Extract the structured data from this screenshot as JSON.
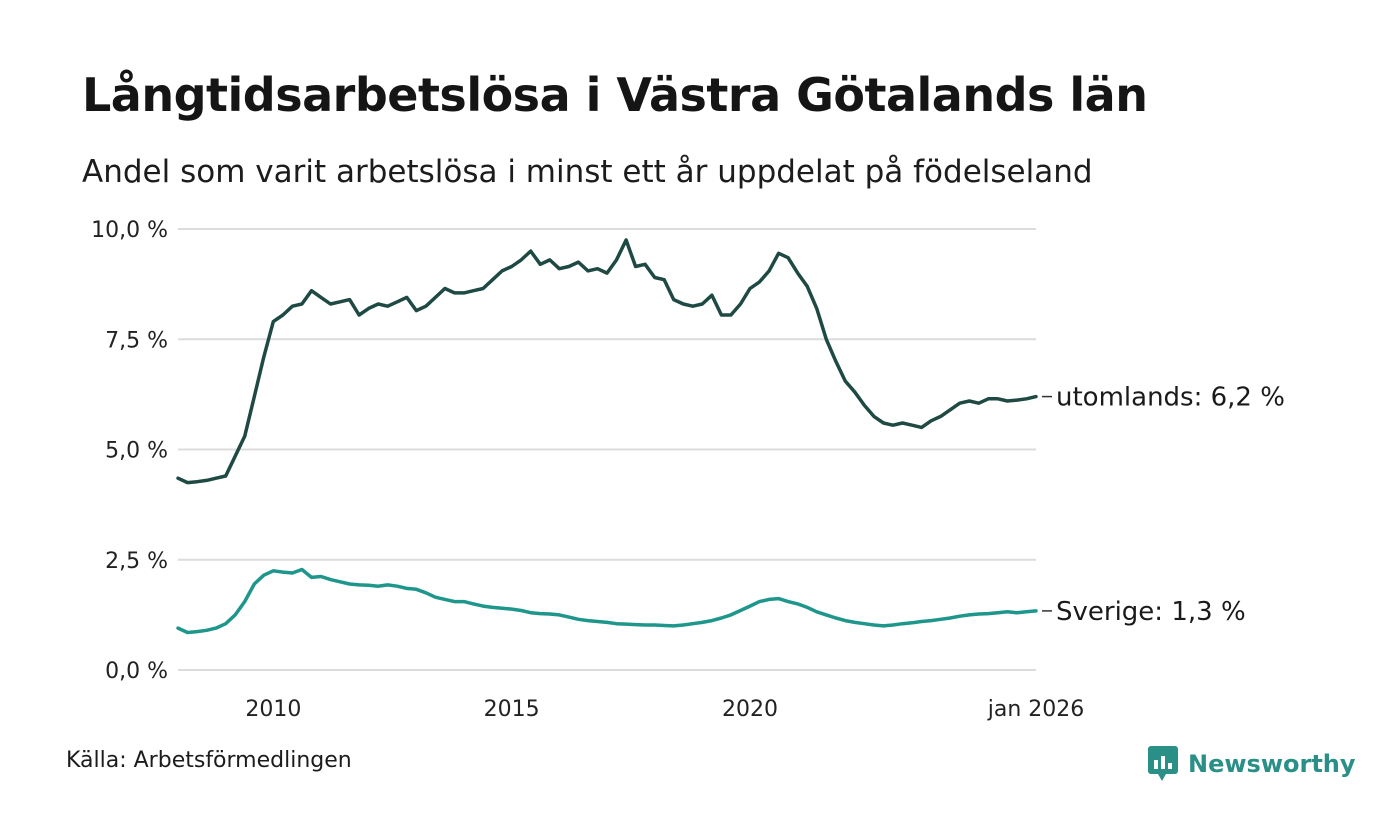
{
  "title": "Långtidsarbetslösa i Västra Götalands län",
  "subtitle": "Andel som varit arbetslösa i minst ett år uppdelat på födelseland",
  "source": "Källa: Arbetsförmedlingen",
  "brand": {
    "name": "Newsworthy",
    "icon": "newsworthy-logo-icon",
    "color": "#2a8f86"
  },
  "chart_data": {
    "type": "line",
    "title": "Långtidsarbetslösa i Västra Götalands län",
    "xlabel": "",
    "ylabel": "",
    "xlim": [
      2008.0,
      2026.0
    ],
    "ylim": [
      0,
      10
    ],
    "grid": true,
    "y_ticks": [
      0,
      2.5,
      5,
      7.5,
      10
    ],
    "y_tick_labels": [
      "0,0 %",
      "2,5 %",
      "5,0 %",
      "7,5 %",
      "10,0 %"
    ],
    "x_ticks": [
      2010,
      2015,
      2020,
      2026.0
    ],
    "x_tick_labels": [
      "2010",
      "2015",
      "2020",
      "jan 2026"
    ],
    "series": [
      {
        "name": "utomlands",
        "label": "utomlands: 6,2 %",
        "color": "#1f4a44",
        "x": [
          2008.0,
          2008.2,
          2008.4,
          2008.6,
          2008.8,
          2009.0,
          2009.2,
          2009.4,
          2009.6,
          2009.8,
          2010.0,
          2010.2,
          2010.4,
          2010.6,
          2010.8,
          2011.0,
          2011.2,
          2011.4,
          2011.6,
          2011.8,
          2012.0,
          2012.2,
          2012.4,
          2012.6,
          2012.8,
          2013.0,
          2013.2,
          2013.4,
          2013.6,
          2013.8,
          2014.0,
          2014.2,
          2014.4,
          2014.6,
          2014.8,
          2015.0,
          2015.2,
          2015.4,
          2015.6,
          2015.8,
          2016.0,
          2016.2,
          2016.4,
          2016.6,
          2016.8,
          2017.0,
          2017.2,
          2017.4,
          2017.6,
          2017.8,
          2018.0,
          2018.2,
          2018.4,
          2018.6,
          2018.8,
          2019.0,
          2019.2,
          2019.4,
          2019.6,
          2019.8,
          2020.0,
          2020.2,
          2020.4,
          2020.6,
          2020.8,
          2021.0,
          2021.2,
          2021.4,
          2021.6,
          2021.8,
          2022.0,
          2022.2,
          2022.4,
          2022.6,
          2022.8,
          2023.0,
          2023.2,
          2023.4,
          2023.6,
          2023.8,
          2024.0,
          2024.2,
          2024.4,
          2024.6,
          2024.8,
          2025.0,
          2025.2,
          2025.4,
          2025.6,
          2025.8,
          2026.0
        ],
        "values": [
          4.35,
          4.25,
          4.27,
          4.3,
          4.35,
          4.4,
          4.85,
          5.3,
          6.2,
          7.1,
          7.9,
          8.05,
          8.25,
          8.3,
          8.6,
          8.45,
          8.3,
          8.35,
          8.4,
          8.05,
          8.2,
          8.3,
          8.25,
          8.35,
          8.45,
          8.15,
          8.25,
          8.45,
          8.65,
          8.55,
          8.55,
          8.6,
          8.65,
          8.85,
          9.05,
          9.15,
          9.3,
          9.5,
          9.2,
          9.3,
          9.1,
          9.15,
          9.25,
          9.05,
          9.1,
          9.0,
          9.3,
          9.75,
          9.15,
          9.2,
          8.9,
          8.85,
          8.4,
          8.3,
          8.25,
          8.3,
          8.5,
          8.05,
          8.05,
          8.3,
          8.65,
          8.8,
          9.05,
          9.45,
          9.35,
          9.0,
          8.7,
          8.2,
          7.5,
          7.0,
          6.55,
          6.3,
          6.0,
          5.75,
          5.6,
          5.55,
          5.6,
          5.55,
          5.5,
          5.65,
          5.75,
          5.9,
          6.05,
          6.1,
          6.05,
          6.15,
          6.15,
          6.1,
          6.12,
          6.15,
          6.2
        ]
      },
      {
        "name": "Sverige",
        "label": "Sverige: 1,3 %",
        "color": "#1f968b",
        "x": [
          2008.0,
          2008.2,
          2008.4,
          2008.6,
          2008.8,
          2009.0,
          2009.2,
          2009.4,
          2009.6,
          2009.8,
          2010.0,
          2010.2,
          2010.4,
          2010.6,
          2010.8,
          2011.0,
          2011.2,
          2011.4,
          2011.6,
          2011.8,
          2012.0,
          2012.2,
          2012.4,
          2012.6,
          2012.8,
          2013.0,
          2013.2,
          2013.4,
          2013.6,
          2013.8,
          2014.0,
          2014.2,
          2014.4,
          2014.6,
          2014.8,
          2015.0,
          2015.2,
          2015.4,
          2015.6,
          2015.8,
          2016.0,
          2016.2,
          2016.4,
          2016.6,
          2016.8,
          2017.0,
          2017.2,
          2017.4,
          2017.6,
          2017.8,
          2018.0,
          2018.2,
          2018.4,
          2018.6,
          2018.8,
          2019.0,
          2019.2,
          2019.4,
          2019.6,
          2019.8,
          2020.0,
          2020.2,
          2020.4,
          2020.6,
          2020.8,
          2021.0,
          2021.2,
          2021.4,
          2021.6,
          2021.8,
          2022.0,
          2022.2,
          2022.4,
          2022.6,
          2022.8,
          2023.0,
          2023.2,
          2023.4,
          2023.6,
          2023.8,
          2024.0,
          2024.2,
          2024.4,
          2024.6,
          2024.8,
          2025.0,
          2025.2,
          2025.4,
          2025.6,
          2025.8,
          2026.0
        ],
        "values": [
          0.95,
          0.85,
          0.87,
          0.9,
          0.95,
          1.05,
          1.25,
          1.55,
          1.95,
          2.15,
          2.25,
          2.22,
          2.2,
          2.28,
          2.1,
          2.12,
          2.05,
          2.0,
          1.95,
          1.93,
          1.92,
          1.9,
          1.93,
          1.9,
          1.85,
          1.83,
          1.75,
          1.65,
          1.6,
          1.55,
          1.55,
          1.5,
          1.45,
          1.42,
          1.4,
          1.38,
          1.35,
          1.3,
          1.28,
          1.27,
          1.25,
          1.2,
          1.15,
          1.12,
          1.1,
          1.08,
          1.05,
          1.04,
          1.03,
          1.02,
          1.02,
          1.01,
          1.0,
          1.02,
          1.05,
          1.08,
          1.12,
          1.18,
          1.25,
          1.35,
          1.45,
          1.55,
          1.6,
          1.62,
          1.55,
          1.5,
          1.42,
          1.32,
          1.25,
          1.18,
          1.12,
          1.08,
          1.05,
          1.02,
          1.0,
          1.02,
          1.05,
          1.07,
          1.1,
          1.12,
          1.15,
          1.18,
          1.22,
          1.25,
          1.27,
          1.28,
          1.3,
          1.32,
          1.3,
          1.32,
          1.34
        ]
      }
    ]
  }
}
